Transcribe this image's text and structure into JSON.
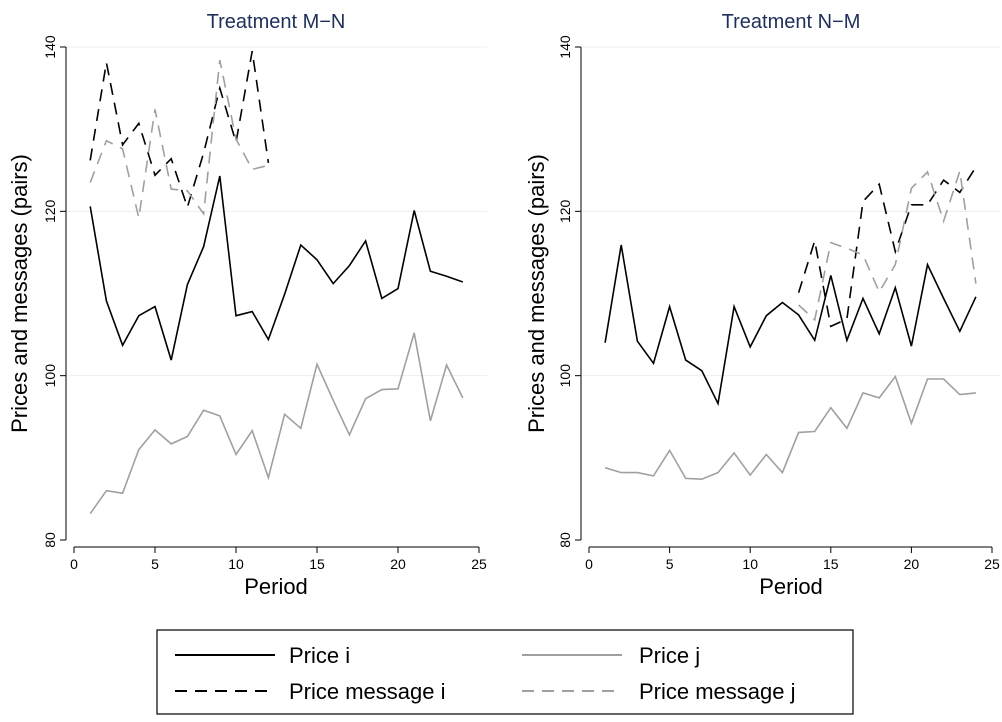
{
  "colors": {
    "price_i": "#000000",
    "price_j": "#a0a0a0",
    "price_message_i": "#000000",
    "price_message_j": "#a0a0a0",
    "title": "#1e2f5a",
    "grid": "#eaf1f3"
  },
  "legend": {
    "position": "bottom",
    "items": [
      {
        "label": "Price i",
        "key": "price_i",
        "dash": "solid"
      },
      {
        "label": "Price j",
        "key": "price_j",
        "dash": "solid"
      },
      {
        "label": "Price message i",
        "key": "price_message_i",
        "dash": "dashed"
      },
      {
        "label": "Price message j",
        "key": "price_message_j",
        "dash": "dashed"
      }
    ]
  },
  "chart_data": [
    {
      "type": "line",
      "title": "Treatment M−N",
      "xlabel": "Period",
      "ylabel": "Prices and messages (pairs)",
      "xlim": [
        0,
        25
      ],
      "ylim": [
        80,
        140
      ],
      "xticks": [
        0,
        5,
        10,
        15,
        20,
        25
      ],
      "yticks": [
        80,
        100,
        120,
        140
      ],
      "grid": true,
      "series": [
        {
          "name": "Price i",
          "key": "price_i",
          "x": [
            1,
            2,
            3,
            4,
            5,
            6,
            7,
            8,
            9,
            10,
            11,
            12,
            13,
            14,
            15,
            16,
            17,
            18,
            19,
            20,
            21,
            22,
            23,
            24
          ],
          "y": [
            120.6,
            109.1,
            103.7,
            107.3,
            108.4,
            101.9,
            111.1,
            115.7,
            124.3,
            107.3,
            107.8,
            104.4,
            109.9,
            115.9,
            114.1,
            111.2,
            113.4,
            116.4,
            109.4,
            110.6,
            120.1,
            112.7,
            112.1,
            111.4
          ]
        },
        {
          "name": "Price j",
          "key": "price_j",
          "x": [
            1,
            2,
            3,
            4,
            5,
            6,
            7,
            8,
            9,
            10,
            11,
            12,
            13,
            14,
            15,
            16,
            17,
            18,
            19,
            20,
            21,
            22,
            23,
            24
          ],
          "y": [
            83.2,
            86.0,
            85.7,
            91.0,
            93.4,
            91.7,
            92.6,
            95.8,
            95.1,
            90.4,
            93.3,
            87.6,
            95.3,
            93.6,
            101.4,
            97.0,
            92.8,
            97.2,
            98.3,
            98.4,
            105.2,
            94.5,
            101.3,
            97.3
          ]
        },
        {
          "name": "Price message i",
          "key": "price_message_i",
          "x": [
            1,
            2,
            3,
            4,
            5,
            6,
            7,
            8,
            9,
            10,
            11,
            12
          ],
          "y": [
            126.2,
            138.1,
            128.1,
            130.7,
            124.4,
            126.4,
            120.5,
            127.1,
            135.0,
            128.4,
            139.5,
            125.9
          ]
        },
        {
          "name": "Price message j",
          "key": "price_message_j",
          "x": [
            1,
            2,
            3,
            4,
            5,
            6,
            7,
            8,
            9,
            10,
            11,
            12
          ],
          "y": [
            123.5,
            128.6,
            127.6,
            119.2,
            132.4,
            122.7,
            122.5,
            119.7,
            138.4,
            128.8,
            125.1,
            125.6
          ]
        }
      ]
    },
    {
      "type": "line",
      "title": "Treatment N−M",
      "xlabel": "Period",
      "ylabel": "Prices and messages (pairs)",
      "xlim": [
        0,
        25
      ],
      "ylim": [
        80,
        140
      ],
      "xticks": [
        0,
        5,
        10,
        15,
        20,
        25
      ],
      "yticks": [
        80,
        100,
        120,
        140
      ],
      "grid": true,
      "series": [
        {
          "name": "Price i",
          "key": "price_i",
          "x": [
            1,
            2,
            3,
            4,
            5,
            6,
            7,
            8,
            9,
            10,
            11,
            12,
            13,
            14,
            15,
            16,
            17,
            18,
            19,
            20,
            21,
            22,
            23,
            24
          ],
          "y": [
            104.0,
            115.9,
            104.2,
            101.5,
            108.4,
            101.9,
            100.6,
            96.6,
            108.4,
            103.5,
            107.3,
            108.9,
            107.4,
            104.3,
            112.2,
            104.3,
            109.4,
            105.1,
            110.7,
            103.6,
            113.5,
            109.4,
            105.4,
            109.6
          ]
        },
        {
          "name": "Price j",
          "key": "price_j",
          "x": [
            1,
            2,
            3,
            4,
            5,
            6,
            7,
            8,
            9,
            10,
            11,
            12,
            13,
            14,
            15,
            16,
            17,
            18,
            19,
            20,
            21,
            22,
            23,
            24
          ],
          "y": [
            88.8,
            88.2,
            88.2,
            87.8,
            90.9,
            87.5,
            87.4,
            88.2,
            90.6,
            87.9,
            90.4,
            88.2,
            93.1,
            93.2,
            96.1,
            93.6,
            97.9,
            97.3,
            99.9,
            94.2,
            99.6,
            99.6,
            97.7,
            97.9
          ]
        },
        {
          "name": "Price message i",
          "key": "price_message_i",
          "x": [
            13,
            14,
            15,
            16,
            17,
            18,
            19,
            20,
            21,
            22,
            23,
            24
          ],
          "y": [
            110.1,
            116.4,
            106.0,
            106.9,
            121.2,
            123.3,
            115.1,
            120.8,
            120.8,
            123.8,
            122.3,
            125.4
          ]
        },
        {
          "name": "Price message j",
          "key": "price_message_j",
          "x": [
            13,
            14,
            15,
            16,
            17,
            18,
            19,
            20,
            21,
            22,
            23,
            24
          ],
          "y": [
            108.6,
            106.8,
            116.2,
            115.5,
            114.7,
            110.2,
            113.5,
            122.8,
            124.8,
            118.8,
            124.9,
            111.2
          ]
        }
      ]
    }
  ]
}
